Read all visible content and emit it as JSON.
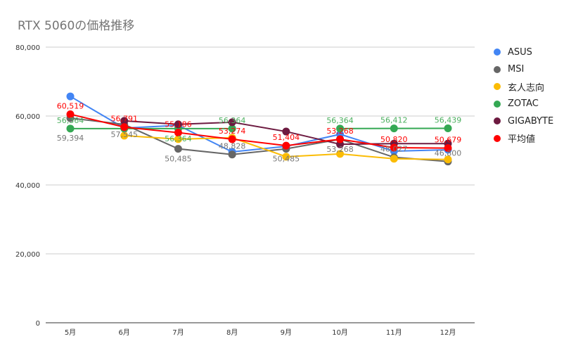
{
  "chart_data": {
    "type": "line",
    "title": "RTX 5060の価格推移",
    "categories": [
      "5月",
      "6月",
      "7月",
      "8月",
      "9月",
      "10月",
      "11月",
      "12月"
    ],
    "ylim": [
      0,
      80000
    ],
    "yticks": [
      "0",
      "20,000",
      "40,000",
      "60,000",
      "80,000"
    ],
    "grid": true,
    "legend": "right",
    "series": [
      {
        "name": "ASUS",
        "color": "#4285f4",
        "values": [
          65700,
          56500,
          57300,
          49600,
          51200,
          54700,
          49800,
          50200
        ],
        "labels": []
      },
      {
        "name": "MSI",
        "color": "#666666",
        "values": [
          59394,
          57545,
          50485,
          48828,
          50485,
          53268,
          48027,
          46800
        ],
        "labels": [
          "59,394",
          "57,545",
          "50,485",
          "48,828",
          "50,485",
          "53,268",
          "48,027",
          "46,800"
        ]
      },
      {
        "name": "玄人志向",
        "color": "#fbbc04",
        "values": [
          null,
          54300,
          53300,
          53700,
          48200,
          49000,
          47600,
          47400
        ],
        "labels": []
      },
      {
        "name": "ZOTAC",
        "color": "#34a853",
        "values": [
          56364,
          56364,
          56364,
          56364,
          null,
          56364,
          56412,
          56439
        ],
        "labels": [
          "56,364",
          "",
          "56,364",
          "56,364",
          "",
          "56,364",
          "56,412",
          "56,439"
        ]
      },
      {
        "name": "GIGABYTE",
        "color": "#6d1a40",
        "values": [
          null,
          58600,
          57600,
          58200,
          55500,
          51800,
          52000,
          52000
        ],
        "labels": []
      },
      {
        "name": "平均値",
        "color": "#ff0000",
        "values": [
          60519,
          56791,
          55186,
          53274,
          51404,
          53268,
          50820,
          50679
        ],
        "labels": [
          "60,519",
          "56,791",
          "55,186",
          "53,274",
          "51,404",
          "53,268",
          "50,820",
          "50,679"
        ]
      }
    ]
  }
}
